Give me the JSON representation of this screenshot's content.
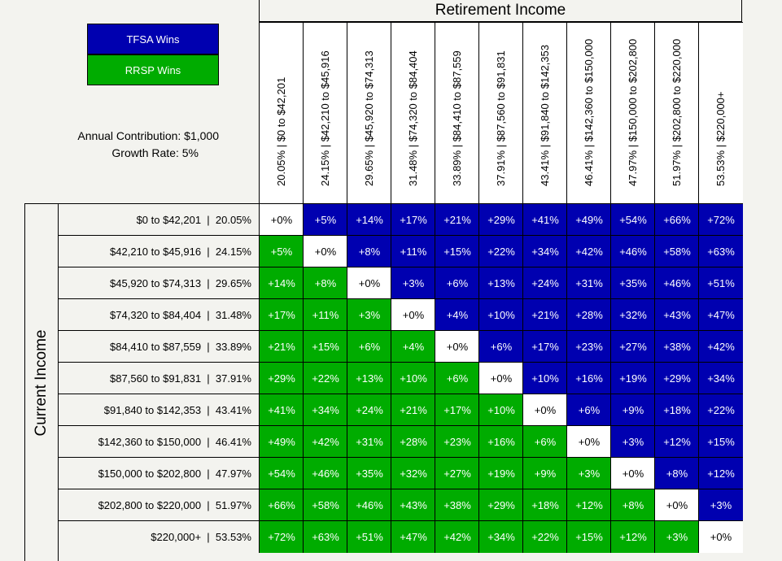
{
  "header": {
    "title": "Retirement Income",
    "legend": [
      {
        "label": "TFSA Wins",
        "color": "#0000b0"
      },
      {
        "label": "RRSP Wins",
        "color": "#00ac00"
      }
    ],
    "contribution": "Annual Contribution: $1,000",
    "growth": "Growth Rate: 5%",
    "row_axis_label": "Current Income"
  },
  "colors": {
    "tfsa": "#0000b0",
    "rrsp": "#00ac00",
    "even": "#ffffff"
  },
  "chart_data": {
    "type": "heatmap",
    "title": "Retirement Income",
    "ylabel": "Current Income",
    "brackets": [
      "$0 to $42,201  |  20.05%",
      "$42,210 to $45,916  |  24.15%",
      "$45,920 to $74,313  |  29.65%",
      "$74,320 to $84,404  |  31.48%",
      "$84,410 to $87,559  |  33.89%",
      "$87,560 to $91,831  |  37.91%",
      "$91,840 to $142,353  |  43.41%",
      "$142,360 to $150,000  |  46.41%",
      "$150,000 to $202,800  |  47.97%",
      "$202,800 to $220,000  |  51.97%",
      "$220,000+  |  53.53%"
    ],
    "col_labels": [
      "20.05%  |  $0 to $42,201",
      "24.15%  |  $42,210 to $45,916",
      "29.65%  |  $45,920 to $74,313",
      "31.48%  |  $74,320 to $84,404",
      "33.89%  |  $84,410 to $87,559",
      "37.91%  |  $87,560 to $91,831",
      "43.41%  |  $91,840 to $142,353",
      "46.41%  |  $142,360 to $150,000",
      "47.97%  |  $150,000 to $202,800",
      "51.97%  |  $202,800 to $220,000",
      "53.53%  |  $220,000+"
    ],
    "values": [
      [
        "+0%",
        "+5%",
        "+14%",
        "+17%",
        "+21%",
        "+29%",
        "+41%",
        "+49%",
        "+54%",
        "+66%",
        "+72%"
      ],
      [
        "+5%",
        "+0%",
        "+8%",
        "+11%",
        "+15%",
        "+22%",
        "+34%",
        "+42%",
        "+46%",
        "+58%",
        "+63%"
      ],
      [
        "+14%",
        "+8%",
        "+0%",
        "+3%",
        "+6%",
        "+13%",
        "+24%",
        "+31%",
        "+35%",
        "+46%",
        "+51%"
      ],
      [
        "+17%",
        "+11%",
        "+3%",
        "+0%",
        "+4%",
        "+10%",
        "+21%",
        "+28%",
        "+32%",
        "+43%",
        "+47%"
      ],
      [
        "+21%",
        "+15%",
        "+6%",
        "+4%",
        "+0%",
        "+6%",
        "+17%",
        "+23%",
        "+27%",
        "+38%",
        "+42%"
      ],
      [
        "+29%",
        "+22%",
        "+13%",
        "+10%",
        "+6%",
        "+0%",
        "+10%",
        "+16%",
        "+19%",
        "+29%",
        "+34%"
      ],
      [
        "+41%",
        "+34%",
        "+24%",
        "+21%",
        "+17%",
        "+10%",
        "+0%",
        "+6%",
        "+9%",
        "+18%",
        "+22%"
      ],
      [
        "+49%",
        "+42%",
        "+31%",
        "+28%",
        "+23%",
        "+16%",
        "+6%",
        "+0%",
        "+3%",
        "+12%",
        "+15%"
      ],
      [
        "+54%",
        "+46%",
        "+35%",
        "+32%",
        "+27%",
        "+19%",
        "+9%",
        "+3%",
        "+0%",
        "+8%",
        "+12%"
      ],
      [
        "+66%",
        "+58%",
        "+46%",
        "+43%",
        "+38%",
        "+29%",
        "+18%",
        "+12%",
        "+8%",
        "+0%",
        "+3%"
      ],
      [
        "+72%",
        "+63%",
        "+51%",
        "+47%",
        "+42%",
        "+34%",
        "+22%",
        "+15%",
        "+12%",
        "+3%",
        "+0%"
      ]
    ],
    "legend": [
      "TFSA Wins",
      "RRSP Wins"
    ]
  }
}
